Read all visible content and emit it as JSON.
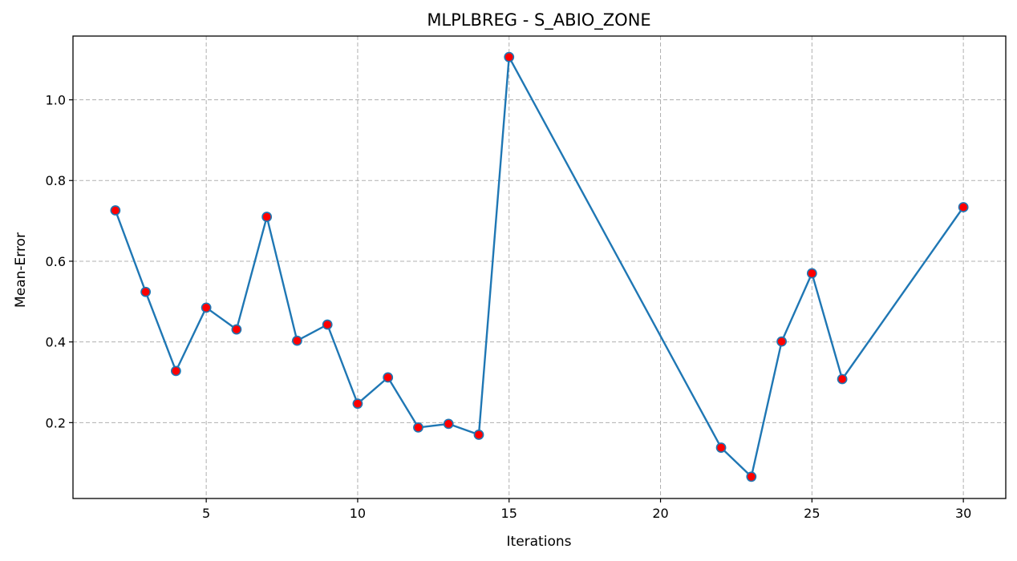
{
  "chart_data": {
    "type": "line",
    "title": "MLPLBREG - S_ABIO_ZONE",
    "xlabel": "Iterations",
    "ylabel": "Mean-Error",
    "xlim": [
      0.6,
      31.4
    ],
    "ylim": [
      0.012,
      1.158
    ],
    "xticks": [
      5,
      10,
      15,
      20,
      25,
      30
    ],
    "yticks": [
      0.2,
      0.4,
      0.6,
      0.8,
      1.0
    ],
    "ytick_labels": [
      "0.2",
      "0.4",
      "0.6",
      "0.8",
      "1.0"
    ],
    "grid": true,
    "x": [
      2,
      3,
      4,
      5,
      6,
      7,
      8,
      9,
      10,
      11,
      12,
      13,
      14,
      15,
      22,
      23,
      24,
      25,
      26,
      30
    ],
    "series": [
      {
        "values": [
          0.726,
          0.524,
          0.328,
          0.485,
          0.431,
          0.71,
          0.403,
          0.443,
          0.247,
          0.312,
          0.188,
          0.197,
          0.17,
          1.106,
          0.138,
          0.066,
          0.401,
          0.57,
          0.308,
          0.734
        ],
        "line_color": "#1f77b4",
        "marker_fill": "#ff0000",
        "marker_edge": "#1f77b4"
      }
    ]
  }
}
